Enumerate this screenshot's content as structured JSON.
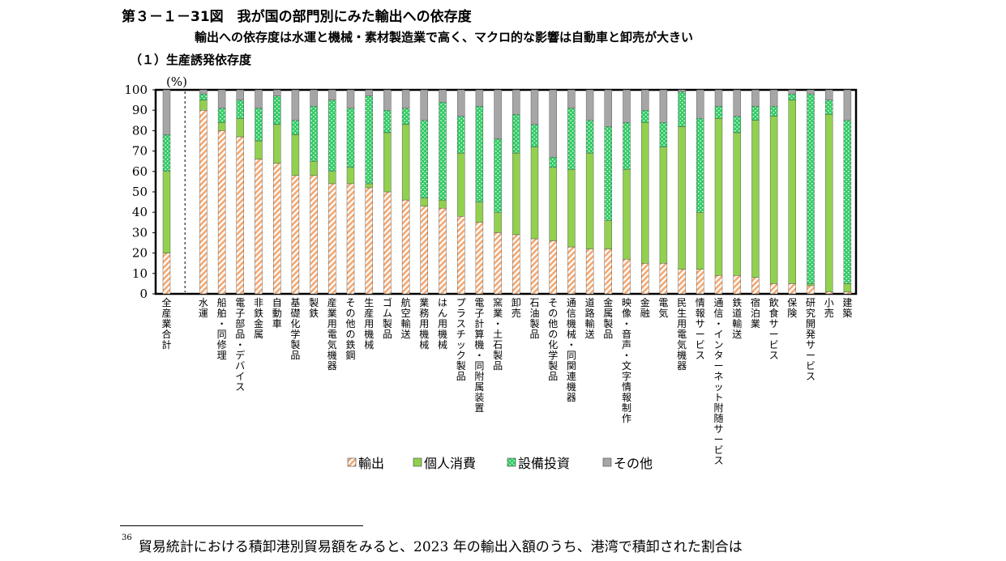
{
  "figure": {
    "title": "第３－１－31図　我が国の部門別にみた輸出への依存度",
    "subtitle": "輸出への依存度は水運と機械・素材製造業で高く、マクロ的な影響は自動車と卸売が大きい",
    "panel_title": "（１）生産誘発依存度"
  },
  "chart_data": {
    "type": "bar",
    "stacked": true,
    "ylabel": "(%)",
    "ylim": [
      0,
      100
    ],
    "yticks": [
      0,
      10,
      20,
      30,
      40,
      50,
      60,
      70,
      80,
      90,
      100
    ],
    "legend_position": "bottom",
    "categories": [
      "全産業合計",
      "水運",
      "船舶・同修理",
      "電子部品・デバイス",
      "非鉄金属",
      "自動車",
      "基礎化学製品",
      "製鉄",
      "産業用電気機器",
      "その他の鉄鋼",
      "生産用機械",
      "ゴム製品",
      "航空輸送",
      "業務用機械",
      "はん用機械",
      "プラスチック製品",
      "電子計算機・同附属装置",
      "窯業・土石製品",
      "卸売",
      "石油製品",
      "その他の化学製品",
      "通信機械・同関連機器",
      "道路輸送",
      "金属製品",
      "映像・音声・文字情報制作",
      "金融",
      "電気",
      "民生用電気機器",
      "情報サービス",
      "通信・インターネット附随サービス",
      "鉄道輸送",
      "宿泊業",
      "飲食サービス",
      "保険",
      "研究開発サービス",
      "小売",
      "建築"
    ],
    "series": [
      {
        "name": "輸出",
        "color": "#f4a76f",
        "values": [
          20,
          90,
          80,
          77,
          66,
          64,
          58,
          58,
          54,
          54,
          52,
          50,
          46,
          43,
          42,
          38,
          35,
          30,
          29,
          27,
          26,
          23,
          22,
          22,
          17,
          15,
          15,
          12,
          12,
          9,
          9,
          8,
          5,
          5,
          4,
          1,
          1
        ]
      },
      {
        "name": "個人消費",
        "color": "#92d050",
        "values": [
          40,
          5,
          4,
          9,
          9,
          19,
          20,
          7,
          6,
          8,
          2,
          29,
          37,
          4,
          4,
          31,
          10,
          10,
          40,
          45,
          36,
          38,
          47,
          14,
          44,
          69,
          57,
          70,
          28,
          77,
          70,
          77,
          82,
          90,
          1,
          87,
          4
        ]
      },
      {
        "name": "設備投資",
        "color": "#33cc66",
        "values": [
          18,
          3,
          7,
          9,
          16,
          14,
          7,
          27,
          35,
          29,
          43,
          11,
          8,
          38,
          48,
          18,
          47,
          36,
          19,
          11,
          5,
          30,
          16,
          46,
          23,
          6,
          12,
          17,
          46,
          6,
          8,
          7,
          5,
          3,
          93,
          7,
          80
        ]
      },
      {
        "name": "その他",
        "color": "#a6a6a6",
        "values": [
          22,
          2,
          9,
          5,
          9,
          3,
          15,
          8,
          5,
          9,
          3,
          10,
          9,
          15,
          6,
          13,
          8,
          24,
          12,
          17,
          33,
          9,
          15,
          18,
          16,
          10,
          16,
          1,
          14,
          8,
          13,
          8,
          8,
          2,
          2,
          5,
          15
        ]
      }
    ]
  },
  "footnote": {
    "number": "36",
    "text": "貿易統計における積卸港別貿易額をみると、2023 年の輸出入額のうち、港湾で積卸された割合は"
  }
}
